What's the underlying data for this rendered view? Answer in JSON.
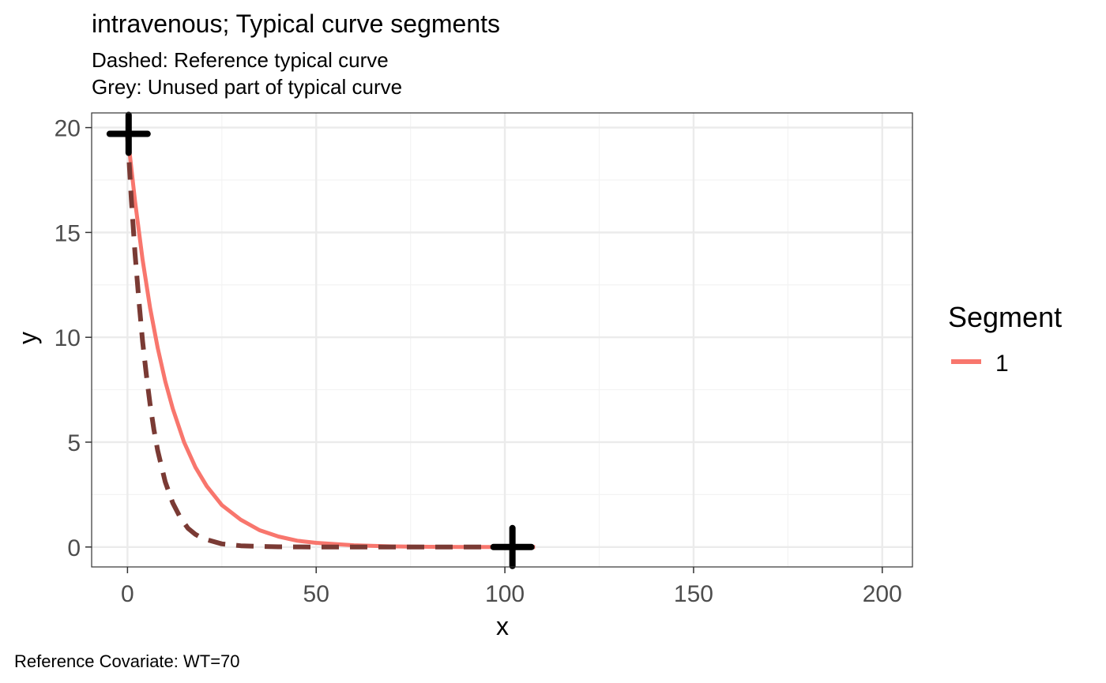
{
  "chart_data": {
    "type": "line",
    "title": "intravenous; Typical curve segments",
    "subtitle_lines": [
      "Dashed: Reference typical curve",
      "Grey: Unused part of typical curve"
    ],
    "caption": "Reference Covariate: WT=70",
    "xlabel": "x",
    "ylabel": "y",
    "xlim": [
      -9.5,
      208
    ],
    "ylim": [
      -0.95,
      20.7
    ],
    "x_ticks": [
      0,
      50,
      100,
      150,
      200
    ],
    "x_tick_labels": [
      "0",
      "50",
      "100",
      "150",
      "200"
    ],
    "y_ticks": [
      0,
      5,
      10,
      15,
      20
    ],
    "y_tick_labels": [
      "0",
      "5",
      "10",
      "15",
      "20"
    ],
    "grid": true,
    "legend": {
      "title": "Segment",
      "position": "right",
      "entries": [
        {
          "label": "1",
          "color": "#F8766D"
        }
      ]
    },
    "series": [
      {
        "name": "1",
        "style": "solid",
        "color": "#F8766D",
        "x": [
          0,
          2,
          4,
          6,
          8,
          10,
          12,
          15,
          18,
          21,
          25,
          30,
          35,
          40,
          45,
          50,
          60,
          70,
          80,
          90,
          100,
          108
        ],
        "y": [
          19.7,
          16.5,
          13.7,
          11.4,
          9.5,
          7.9,
          6.6,
          5.0,
          3.8,
          2.9,
          2.0,
          1.3,
          0.8,
          0.5,
          0.3,
          0.2,
          0.08,
          0.03,
          0.01,
          0.0,
          0.0,
          0.0
        ]
      },
      {
        "name": "Reference typical curve",
        "style": "dashed",
        "color": "#7A3A34",
        "x": [
          0,
          1,
          2,
          3,
          4,
          5,
          6,
          7,
          8,
          10,
          12,
          14,
          16,
          18,
          20,
          25,
          30,
          35,
          40,
          50,
          60,
          70,
          80,
          90,
          100,
          104
        ],
        "y": [
          19.7,
          16.6,
          14.0,
          11.8,
          9.8,
          8.2,
          6.8,
          5.6,
          4.6,
          3.1,
          2.1,
          1.4,
          0.9,
          0.6,
          0.4,
          0.15,
          0.06,
          0.03,
          0.01,
          0.0,
          0.0,
          0.0,
          0.0,
          0.0,
          0.0,
          0.0
        ]
      }
    ],
    "markers": [
      {
        "shape": "plus",
        "x": 0.3,
        "y": 19.7,
        "color": "#000000"
      },
      {
        "shape": "plus",
        "x": 102,
        "y": 0.0,
        "color": "#000000"
      }
    ],
    "colors": {
      "panel_border": "#333333",
      "grid_major": "#EBEBEB",
      "grid_minor": "#F3F3F3",
      "tick_text": "#4D4D4D",
      "text": "#000000"
    }
  }
}
